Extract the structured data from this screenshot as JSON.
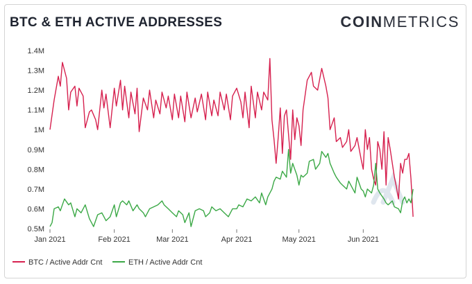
{
  "header": {
    "title": "BTC & ETH ACTIVE ADDRESSES",
    "brand_bold": "COIN",
    "brand_light": "METRICS"
  },
  "colors": {
    "btc": "#d6204e",
    "eth": "#3aa845",
    "watermark": "#dfe6ee"
  },
  "chart_data": {
    "type": "line",
    "title": "BTC & ETH ACTIVE ADDRESSES",
    "xlabel": "",
    "ylabel": "",
    "x_start": "2021-01-01",
    "x_end": "2021-06-30",
    "x_ticks": [
      {
        "label": "Jan 2021",
        "date": "2021-01-01"
      },
      {
        "label": "Feb 2021",
        "date": "2021-02-01"
      },
      {
        "label": "Mar 2021",
        "date": "2021-03-01"
      },
      {
        "label": "Apr 2021",
        "date": "2021-04-01"
      },
      {
        "label": "May 2021",
        "date": "2021-05-01"
      },
      {
        "label": "Jun 2021",
        "date": "2021-06-01"
      }
    ],
    "y_ticks": [
      {
        "label": "0.5M",
        "value": 500000
      },
      {
        "label": "0.6M",
        "value": 600000
      },
      {
        "label": "0.7M",
        "value": 700000
      },
      {
        "label": "0.8M",
        "value": 800000
      },
      {
        "label": "0.9M",
        "value": 900000
      },
      {
        "label": "1M",
        "value": 1000000
      },
      {
        "label": "1.1M",
        "value": 1100000
      },
      {
        "label": "1.2M",
        "value": 1200000
      },
      {
        "label": "1.3M",
        "value": 1300000
      },
      {
        "label": "1.4M",
        "value": 1400000
      }
    ],
    "ylim": [
      500000,
      1400000
    ],
    "grid": false,
    "legend_position": "bottom-left",
    "series": [
      {
        "name": "BTC / Active Addr Cnt",
        "color": "#d6204e",
        "points": [
          [
            "2021-01-01",
            1000000
          ],
          [
            "2021-01-03",
            1150000
          ],
          [
            "2021-01-05",
            1270000
          ],
          [
            "2021-01-06",
            1220000
          ],
          [
            "2021-01-07",
            1340000
          ],
          [
            "2021-01-09",
            1260000
          ],
          [
            "2021-01-10",
            1100000
          ],
          [
            "2021-01-11",
            1190000
          ],
          [
            "2021-01-13",
            1220000
          ],
          [
            "2021-01-14",
            1120000
          ],
          [
            "2021-01-15",
            1210000
          ],
          [
            "2021-01-17",
            1170000
          ],
          [
            "2021-01-18",
            1010000
          ],
          [
            "2021-01-20",
            1090000
          ],
          [
            "2021-01-21",
            1100000
          ],
          [
            "2021-01-23",
            1050000
          ],
          [
            "2021-01-24",
            1000000
          ],
          [
            "2021-01-26",
            1200000
          ],
          [
            "2021-01-27",
            1110000
          ],
          [
            "2021-01-28",
            1180000
          ],
          [
            "2021-01-30",
            1010000
          ],
          [
            "2021-02-01",
            1210000
          ],
          [
            "2021-02-02",
            1120000
          ],
          [
            "2021-02-04",
            1250000
          ],
          [
            "2021-02-05",
            1100000
          ],
          [
            "2021-02-06",
            1220000
          ],
          [
            "2021-02-08",
            1060000
          ],
          [
            "2021-02-09",
            1190000
          ],
          [
            "2021-02-11",
            1080000
          ],
          [
            "2021-02-12",
            1210000
          ],
          [
            "2021-02-13",
            990000
          ],
          [
            "2021-02-15",
            1160000
          ],
          [
            "2021-02-17",
            1100000
          ],
          [
            "2021-02-18",
            1200000
          ],
          [
            "2021-02-20",
            1060000
          ],
          [
            "2021-02-21",
            1150000
          ],
          [
            "2021-02-23",
            1080000
          ],
          [
            "2021-02-24",
            1190000
          ],
          [
            "2021-02-26",
            1110000
          ],
          [
            "2021-02-27",
            1170000
          ],
          [
            "2021-03-01",
            1050000
          ],
          [
            "2021-03-02",
            1180000
          ],
          [
            "2021-03-04",
            1060000
          ],
          [
            "2021-03-05",
            1170000
          ],
          [
            "2021-03-07",
            1040000
          ],
          [
            "2021-03-08",
            1190000
          ],
          [
            "2021-03-10",
            1060000
          ],
          [
            "2021-03-12",
            1160000
          ],
          [
            "2021-03-13",
            1090000
          ],
          [
            "2021-03-15",
            1180000
          ],
          [
            "2021-03-17",
            1050000
          ],
          [
            "2021-03-18",
            1190000
          ],
          [
            "2021-03-20",
            1070000
          ],
          [
            "2021-03-21",
            1150000
          ],
          [
            "2021-03-23",
            1070000
          ],
          [
            "2021-03-24",
            1190000
          ],
          [
            "2021-03-26",
            1100000
          ],
          [
            "2021-03-27",
            1180000
          ],
          [
            "2021-03-29",
            1050000
          ],
          [
            "2021-03-30",
            1170000
          ],
          [
            "2021-04-01",
            1210000
          ],
          [
            "2021-04-03",
            1140000
          ],
          [
            "2021-04-04",
            1060000
          ],
          [
            "2021-04-05",
            1190000
          ],
          [
            "2021-04-07",
            1010000
          ],
          [
            "2021-04-08",
            1220000
          ],
          [
            "2021-04-10",
            1060000
          ],
          [
            "2021-04-11",
            1190000
          ],
          [
            "2021-04-13",
            1100000
          ],
          [
            "2021-04-14",
            1190000
          ],
          [
            "2021-04-16",
            1150000
          ],
          [
            "2021-04-17",
            1360000
          ],
          [
            "2021-04-18",
            1050000
          ],
          [
            "2021-04-19",
            950000
          ],
          [
            "2021-04-20",
            830000
          ],
          [
            "2021-04-21",
            960000
          ],
          [
            "2021-04-22",
            1110000
          ],
          [
            "2021-04-23",
            880000
          ],
          [
            "2021-04-24",
            1070000
          ],
          [
            "2021-04-25",
            1100000
          ],
          [
            "2021-04-27",
            850000
          ],
          [
            "2021-04-28",
            1100000
          ],
          [
            "2021-04-29",
            950000
          ],
          [
            "2021-04-30",
            1060000
          ],
          [
            "2021-05-01",
            1020000
          ],
          [
            "2021-05-02",
            920000
          ],
          [
            "2021-05-03",
            1100000
          ],
          [
            "2021-05-05",
            1250000
          ],
          [
            "2021-05-07",
            1290000
          ],
          [
            "2021-05-08",
            1220000
          ],
          [
            "2021-05-10",
            1200000
          ],
          [
            "2021-05-12",
            1310000
          ],
          [
            "2021-05-14",
            1220000
          ],
          [
            "2021-05-15",
            1160000
          ],
          [
            "2021-05-16",
            1000000
          ],
          [
            "2021-05-18",
            1060000
          ],
          [
            "2021-05-19",
            940000
          ],
          [
            "2021-05-21",
            960000
          ],
          [
            "2021-05-22",
            910000
          ],
          [
            "2021-05-24",
            940000
          ],
          [
            "2021-05-25",
            1000000
          ],
          [
            "2021-05-26",
            890000
          ],
          [
            "2021-05-28",
            920000
          ],
          [
            "2021-05-29",
            960000
          ],
          [
            "2021-05-31",
            850000
          ],
          [
            "2021-06-01",
            800000
          ],
          [
            "2021-06-02",
            1000000
          ],
          [
            "2021-06-03",
            900000
          ],
          [
            "2021-06-04",
            960000
          ],
          [
            "2021-06-05",
            800000
          ],
          [
            "2021-06-06",
            750000
          ],
          [
            "2021-06-07",
            720000
          ],
          [
            "2021-06-08",
            940000
          ],
          [
            "2021-06-09",
            900000
          ],
          [
            "2021-06-10",
            800000
          ],
          [
            "2021-06-11",
            990000
          ],
          [
            "2021-06-12",
            720000
          ],
          [
            "2021-06-13",
            960000
          ],
          [
            "2021-06-14",
            900000
          ],
          [
            "2021-06-16",
            760000
          ],
          [
            "2021-06-17",
            710000
          ],
          [
            "2021-06-18",
            650000
          ],
          [
            "2021-06-19",
            830000
          ],
          [
            "2021-06-20",
            780000
          ],
          [
            "2021-06-21",
            850000
          ],
          [
            "2021-06-22",
            850000
          ],
          [
            "2021-06-23",
            880000
          ],
          [
            "2021-06-24",
            750000
          ],
          [
            "2021-06-25",
            560000
          ]
        ]
      },
      {
        "name": "ETH / Active Addr Cnt",
        "color": "#3aa845",
        "points": [
          [
            "2021-01-01",
            510000
          ],
          [
            "2021-01-02",
            530000
          ],
          [
            "2021-01-03",
            600000
          ],
          [
            "2021-01-05",
            610000
          ],
          [
            "2021-01-06",
            590000
          ],
          [
            "2021-01-07",
            620000
          ],
          [
            "2021-01-08",
            650000
          ],
          [
            "2021-01-10",
            620000
          ],
          [
            "2021-01-11",
            630000
          ],
          [
            "2021-01-13",
            560000
          ],
          [
            "2021-01-14",
            600000
          ],
          [
            "2021-01-16",
            580000
          ],
          [
            "2021-01-18",
            620000
          ],
          [
            "2021-01-20",
            550000
          ],
          [
            "2021-01-22",
            510000
          ],
          [
            "2021-01-24",
            570000
          ],
          [
            "2021-01-26",
            580000
          ],
          [
            "2021-01-28",
            540000
          ],
          [
            "2021-01-30",
            560000
          ],
          [
            "2021-02-01",
            620000
          ],
          [
            "2021-02-02",
            560000
          ],
          [
            "2021-02-04",
            630000
          ],
          [
            "2021-02-05",
            640000
          ],
          [
            "2021-02-07",
            620000
          ],
          [
            "2021-02-08",
            640000
          ],
          [
            "2021-02-10",
            590000
          ],
          [
            "2021-02-12",
            620000
          ],
          [
            "2021-02-13",
            600000
          ],
          [
            "2021-02-15",
            580000
          ],
          [
            "2021-02-16",
            560000
          ],
          [
            "2021-02-18",
            600000
          ],
          [
            "2021-02-20",
            610000
          ],
          [
            "2021-02-22",
            620000
          ],
          [
            "2021-02-24",
            640000
          ],
          [
            "2021-02-25",
            620000
          ],
          [
            "2021-02-27",
            600000
          ],
          [
            "2021-03-01",
            580000
          ],
          [
            "2021-03-03",
            560000
          ],
          [
            "2021-03-04",
            590000
          ],
          [
            "2021-03-06",
            570000
          ],
          [
            "2021-03-07",
            530000
          ],
          [
            "2021-03-09",
            580000
          ],
          [
            "2021-03-10",
            510000
          ],
          [
            "2021-03-12",
            590000
          ],
          [
            "2021-03-14",
            600000
          ],
          [
            "2021-03-16",
            590000
          ],
          [
            "2021-03-17",
            560000
          ],
          [
            "2021-03-19",
            580000
          ],
          [
            "2021-03-20",
            610000
          ],
          [
            "2021-03-22",
            590000
          ],
          [
            "2021-03-24",
            600000
          ],
          [
            "2021-03-26",
            580000
          ],
          [
            "2021-03-28",
            560000
          ],
          [
            "2021-03-30",
            600000
          ],
          [
            "2021-04-01",
            600000
          ],
          [
            "2021-04-02",
            620000
          ],
          [
            "2021-04-04",
            610000
          ],
          [
            "2021-04-06",
            650000
          ],
          [
            "2021-04-08",
            640000
          ],
          [
            "2021-04-10",
            660000
          ],
          [
            "2021-04-12",
            630000
          ],
          [
            "2021-04-13",
            680000
          ],
          [
            "2021-04-15",
            620000
          ],
          [
            "2021-04-16",
            660000
          ],
          [
            "2021-04-18",
            700000
          ],
          [
            "2021-04-19",
            740000
          ],
          [
            "2021-04-20",
            760000
          ],
          [
            "2021-04-22",
            750000
          ],
          [
            "2021-04-23",
            790000
          ],
          [
            "2021-04-25",
            760000
          ],
          [
            "2021-04-26",
            900000
          ],
          [
            "2021-04-27",
            780000
          ],
          [
            "2021-04-28",
            830000
          ],
          [
            "2021-04-30",
            770000
          ],
          [
            "2021-05-01",
            720000
          ],
          [
            "2021-05-02",
            770000
          ],
          [
            "2021-05-03",
            760000
          ],
          [
            "2021-05-05",
            780000
          ],
          [
            "2021-05-06",
            840000
          ],
          [
            "2021-05-08",
            850000
          ],
          [
            "2021-05-09",
            800000
          ],
          [
            "2021-05-11",
            830000
          ],
          [
            "2021-05-12",
            890000
          ],
          [
            "2021-05-14",
            860000
          ],
          [
            "2021-05-15",
            880000
          ],
          [
            "2021-05-16",
            830000
          ],
          [
            "2021-05-18",
            780000
          ],
          [
            "2021-05-19",
            760000
          ],
          [
            "2021-05-21",
            730000
          ],
          [
            "2021-05-22",
            720000
          ],
          [
            "2021-05-24",
            700000
          ],
          [
            "2021-05-25",
            740000
          ],
          [
            "2021-05-26",
            720000
          ],
          [
            "2021-05-28",
            680000
          ],
          [
            "2021-05-29",
            760000
          ],
          [
            "2021-05-31",
            700000
          ],
          [
            "2021-06-01",
            690000
          ],
          [
            "2021-06-02",
            660000
          ],
          [
            "2021-06-03",
            700000
          ],
          [
            "2021-06-05",
            680000
          ],
          [
            "2021-06-06",
            720000
          ],
          [
            "2021-06-07",
            830000
          ],
          [
            "2021-06-08",
            700000
          ],
          [
            "2021-06-09",
            680000
          ],
          [
            "2021-06-11",
            650000
          ],
          [
            "2021-06-12",
            630000
          ],
          [
            "2021-06-13",
            620000
          ],
          [
            "2021-06-15",
            640000
          ],
          [
            "2021-06-16",
            610000
          ],
          [
            "2021-06-18",
            600000
          ],
          [
            "2021-06-19",
            580000
          ],
          [
            "2021-06-20",
            640000
          ],
          [
            "2021-06-21",
            660000
          ],
          [
            "2021-06-22",
            630000
          ],
          [
            "2021-06-23",
            650000
          ],
          [
            "2021-06-24",
            630000
          ],
          [
            "2021-06-25",
            700000
          ]
        ]
      }
    ]
  }
}
